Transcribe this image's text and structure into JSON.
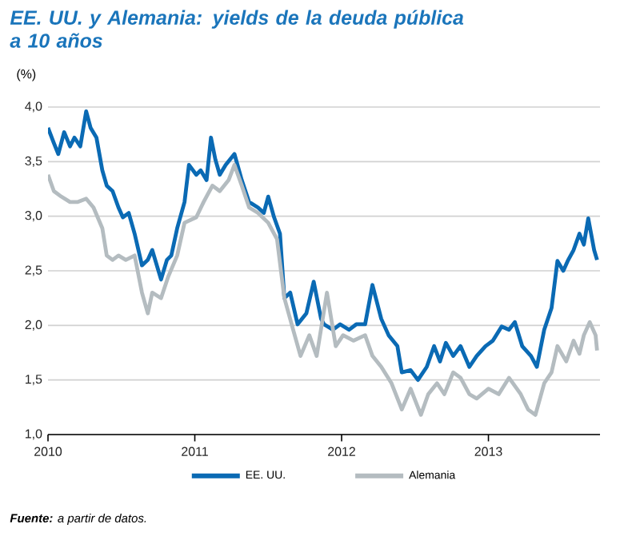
{
  "chart_data": {
    "type": "line",
    "title": "EE. UU. y Alemania: yields de la deuda pública a 10 años",
    "ylabel": "(%)",
    "annotations": [
      "**Fuente:** a partir de datos."
    ],
    "xlim": [
      2010,
      2013.76
    ],
    "xticks": [
      2010,
      2011,
      2012,
      2013
    ],
    "ylim": [
      1,
      4
    ],
    "yticks": [
      {
        "value": 1,
        "label": "1,0"
      },
      {
        "value": 1.5,
        "label": "1,5"
      },
      {
        "value": 2,
        "label": "2,0"
      },
      {
        "value": 2.5,
        "label": "2,5"
      },
      {
        "value": 3,
        "label": "3,0"
      },
      {
        "value": 3.5,
        "label": "3,5"
      },
      {
        "value": 4,
        "label": "4,0"
      }
    ],
    "grid": "y",
    "legend": "bottom",
    "series": [
      {
        "name": "EE. UU.",
        "color": "#0a6ab4",
        "x": [
          2010.0,
          2010.04,
          2010.07,
          2010.11,
          2010.15,
          2010.18,
          2010.22,
          2010.26,
          2010.29,
          2010.33,
          2010.37,
          2010.4,
          2010.44,
          2010.48,
          2010.51,
          2010.55,
          2010.59,
          2010.64,
          2010.68,
          2010.71,
          2010.77,
          2010.81,
          2010.84,
          2010.88,
          2010.93,
          2010.96,
          2011.01,
          2011.04,
          2011.08,
          2011.11,
          2011.14,
          2011.17,
          2011.21,
          2011.27,
          2011.32,
          2011.37,
          2011.43,
          2011.47,
          2011.5,
          2011.54,
          2011.58,
          2011.61,
          2011.65,
          2011.7,
          2011.76,
          2011.81,
          2011.86,
          2011.88,
          2011.94,
          2011.99,
          2012.05,
          2012.1,
          2012.16,
          2012.21,
          2012.27,
          2012.32,
          2012.38,
          2012.41,
          2012.47,
          2012.52,
          2012.58,
          2012.63,
          2012.67,
          2012.71,
          2012.76,
          2012.81,
          2012.87,
          2012.92,
          2012.98,
          2013.03,
          2013.09,
          2013.14,
          2013.18,
          2013.23,
          2013.29,
          2013.33,
          2013.38,
          2013.43,
          2013.47,
          2013.51,
          2013.54,
          2013.58,
          2013.62,
          2013.65,
          2013.68,
          2013.72,
          2013.74
        ],
        "values": [
          3.81,
          3.67,
          3.57,
          3.77,
          3.64,
          3.72,
          3.64,
          3.96,
          3.81,
          3.72,
          3.42,
          3.28,
          3.23,
          3.08,
          2.99,
          3.03,
          2.84,
          2.55,
          2.6,
          2.69,
          2.42,
          2.6,
          2.64,
          2.89,
          3.13,
          3.47,
          3.38,
          3.42,
          3.33,
          3.72,
          3.52,
          3.38,
          3.47,
          3.57,
          3.33,
          3.13,
          3.08,
          3.03,
          3.18,
          2.99,
          2.84,
          2.25,
          2.3,
          2.01,
          2.11,
          2.4,
          2.06,
          2.01,
          1.96,
          2.01,
          1.96,
          2.01,
          2.01,
          2.37,
          2.06,
          1.91,
          1.81,
          1.57,
          1.59,
          1.5,
          1.62,
          1.81,
          1.67,
          1.84,
          1.72,
          1.81,
          1.62,
          1.72,
          1.81,
          1.86,
          1.99,
          1.96,
          2.03,
          1.81,
          1.72,
          1.62,
          1.96,
          2.16,
          2.59,
          2.5,
          2.59,
          2.69,
          2.84,
          2.74,
          2.98,
          2.69,
          2.6
        ]
      },
      {
        "name": "Alemania",
        "color": "#b4bcc0",
        "x": [
          2010.0,
          2010.04,
          2010.09,
          2010.15,
          2010.2,
          2010.26,
          2010.31,
          2010.37,
          2010.4,
          2010.44,
          2010.48,
          2010.53,
          2010.59,
          2010.64,
          2010.68,
          2010.71,
          2010.77,
          2010.82,
          2010.88,
          2010.93,
          2011.01,
          2011.06,
          2011.12,
          2011.17,
          2011.23,
          2011.27,
          2011.32,
          2011.37,
          2011.43,
          2011.5,
          2011.56,
          2011.61,
          2011.67,
          2011.72,
          2011.78,
          2011.83,
          2011.9,
          2011.96,
          2012.01,
          2012.08,
          2012.16,
          2012.21,
          2012.27,
          2012.34,
          2012.41,
          2012.47,
          2012.54,
          2012.59,
          2012.65,
          2012.7,
          2012.76,
          2012.81,
          2012.87,
          2012.92,
          2013.0,
          2013.07,
          2013.14,
          2013.22,
          2013.27,
          2013.32,
          2013.38,
          2013.43,
          2013.47,
          2013.53,
          2013.58,
          2013.62,
          2013.65,
          2013.69,
          2013.73,
          2013.74
        ],
        "values": [
          3.38,
          3.23,
          3.18,
          3.13,
          3.13,
          3.16,
          3.08,
          2.89,
          2.64,
          2.6,
          2.64,
          2.6,
          2.64,
          2.3,
          2.11,
          2.3,
          2.25,
          2.45,
          2.64,
          2.94,
          2.99,
          3.13,
          3.28,
          3.23,
          3.33,
          3.47,
          3.28,
          3.08,
          3.03,
          2.94,
          2.79,
          2.25,
          1.96,
          1.72,
          1.91,
          1.72,
          2.3,
          1.81,
          1.91,
          1.86,
          1.91,
          1.72,
          1.62,
          1.47,
          1.23,
          1.42,
          1.18,
          1.37,
          1.47,
          1.37,
          1.57,
          1.52,
          1.37,
          1.33,
          1.42,
          1.37,
          1.52,
          1.37,
          1.23,
          1.18,
          1.47,
          1.57,
          1.81,
          1.67,
          1.86,
          1.74,
          1.91,
          2.03,
          1.91,
          1.77
        ]
      }
    ]
  }
}
